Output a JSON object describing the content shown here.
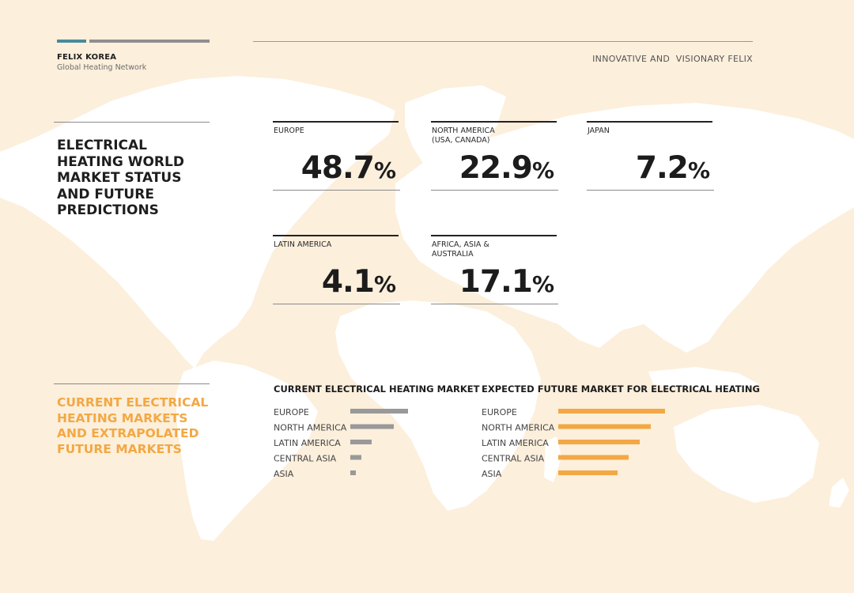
{
  "header": {
    "brand": "FELIX KOREA",
    "brand_sub": "Global Heating Network",
    "tagline": "INNOVATIVE AND  VISIONARY FELIX"
  },
  "colors": {
    "accent_teal": "#4a8a9c",
    "bar_gray": "#999999",
    "accent_orange": "#f3a843",
    "background": "#fcefdc",
    "map": "#ffffff"
  },
  "section1": {
    "title": "ELECTRICAL HEATING WORLD MARKET STATUS AND FUTURE PREDICTIONS",
    "stats": [
      {
        "label": "EUROPE",
        "value": "48.7",
        "unit": "%"
      },
      {
        "label": "NORTH AMERICA\n(USA, CANADA)",
        "value": "22.9",
        "unit": "%"
      },
      {
        "label": "JAPAN",
        "value": "7.2",
        "unit": "%"
      },
      {
        "label": "LATIN AMERICA",
        "value": "4.1",
        "unit": "%"
      },
      {
        "label": "AFRICA, ASIA &\nAUSTRALIA",
        "value": "17.1",
        "unit": "%"
      }
    ]
  },
  "section2": {
    "title": "CURRENT ELECTRICAL HEATING MARKETS AND EXTRAPOLATED FUTURE MARKETS"
  },
  "chart_data": [
    {
      "type": "bar",
      "orientation": "horizontal",
      "title": "CURRENT ELECTRICAL HEATING MARKET",
      "categories": [
        "EUROPE",
        "NORTH AMERICA",
        "LATIN AMERICA",
        "CENTRAL ASIA",
        "ASIA"
      ],
      "values": [
        73,
        55,
        27,
        14,
        7
      ],
      "xlim": [
        0,
        100
      ],
      "color": "#999999",
      "grid": false
    },
    {
      "type": "bar",
      "orientation": "horizontal",
      "title": "EXPECTED FUTURE MARKET FOR ELECTRICAL HEATING",
      "categories": [
        "EUROPE",
        "NORTH AMERICA",
        "LATIN AMERICA",
        "CENTRAL ASIA",
        "ASIA"
      ],
      "values": [
        135,
        117,
        103,
        89,
        75
      ],
      "xlim": [
        0,
        140
      ],
      "color": "#f3a843",
      "grid": false
    }
  ]
}
